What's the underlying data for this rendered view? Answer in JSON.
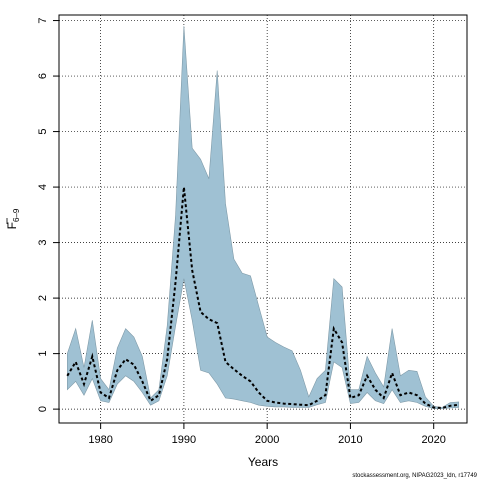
{
  "chart_data": {
    "type": "area",
    "xlabel": "Years",
    "ylabel": "F",
    "ylabel_subscript": "6–9",
    "xlim": [
      1975,
      2024
    ],
    "ylim": [
      -0.25,
      7.1
    ],
    "x_ticks": [
      1980,
      1990,
      2000,
      2010,
      2020
    ],
    "y_ticks": [
      0,
      1,
      2,
      3,
      4,
      5,
      6,
      7
    ],
    "grid": true,
    "grid_style": "dotted",
    "band_color": "#9fc1d3",
    "line_color": "#000000",
    "x": [
      1976,
      1977,
      1978,
      1979,
      1980,
      1981,
      1982,
      1983,
      1984,
      1985,
      1986,
      1987,
      1988,
      1989,
      1990,
      1991,
      1992,
      1993,
      1994,
      1995,
      1996,
      1997,
      1998,
      1999,
      2000,
      2001,
      2002,
      2003,
      2004,
      2005,
      2006,
      2007,
      2008,
      2009,
      2010,
      2011,
      2012,
      2013,
      2014,
      2015,
      2016,
      2017,
      2018,
      2019,
      2020,
      2021,
      2022,
      2023
    ],
    "series": [
      {
        "values": [
          0.6,
          0.85,
          0.45,
          0.95,
          0.3,
          0.2,
          0.7,
          0.9,
          0.8,
          0.5,
          0.15,
          0.25,
          0.9,
          2.3,
          4.0,
          2.5,
          1.75,
          1.62,
          1.55,
          0.85,
          0.72,
          0.6,
          0.5,
          0.3,
          0.15,
          0.12,
          0.1,
          0.09,
          0.08,
          0.07,
          0.15,
          0.25,
          1.45,
          1.2,
          0.2,
          0.25,
          0.6,
          0.35,
          0.2,
          0.65,
          0.25,
          0.3,
          0.25,
          0.1,
          0.03,
          0.02,
          0.06,
          0.08
        ]
      }
    ],
    "band": {
      "upper": [
        1.0,
        1.45,
        0.75,
        1.6,
        0.55,
        0.35,
        1.1,
        1.45,
        1.3,
        0.95,
        0.2,
        0.35,
        1.5,
        3.5,
        6.9,
        4.7,
        4.5,
        4.15,
        6.1,
        3.7,
        2.7,
        2.45,
        2.4,
        1.85,
        1.3,
        1.2,
        1.12,
        1.05,
        0.7,
        0.22,
        0.55,
        0.7,
        2.35,
        2.2,
        0.35,
        0.35,
        0.95,
        0.65,
        0.4,
        1.45,
        0.6,
        0.7,
        0.68,
        0.22,
        0.05,
        0.03,
        0.12,
        0.13
      ],
      "lower": [
        0.35,
        0.5,
        0.25,
        0.55,
        0.15,
        0.12,
        0.45,
        0.6,
        0.5,
        0.3,
        0.07,
        0.15,
        0.6,
        1.5,
        2.35,
        1.6,
        0.7,
        0.65,
        0.45,
        0.2,
        0.18,
        0.15,
        0.12,
        0.07,
        0.05,
        0.04,
        0.04,
        0.03,
        0.03,
        0.03,
        0.08,
        0.12,
        0.85,
        0.75,
        0.1,
        0.12,
        0.3,
        0.15,
        0.1,
        0.35,
        0.12,
        0.15,
        0.12,
        0.05,
        0.01,
        0.01,
        0.02,
        0.03
      ]
    }
  },
  "footer": "stockassessment.org, NIPAG2023_ldn, r17749"
}
